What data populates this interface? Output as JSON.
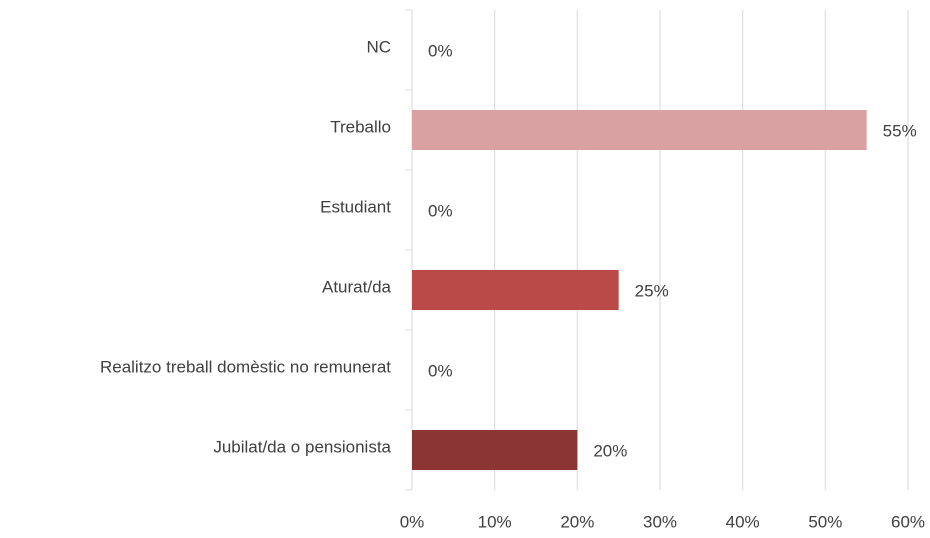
{
  "chart_data": {
    "type": "barh",
    "categories": [
      "NC",
      "Treballo",
      "Estudiant",
      "Aturat/da",
      "Realitzo treball domèstic no remunerat",
      "Jubilat/da o pensionista"
    ],
    "values": [
      0,
      55,
      0,
      25,
      0,
      20
    ],
    "value_labels": [
      "0%",
      "55%",
      "0%",
      "25%",
      "0%",
      "20%"
    ],
    "colors": [
      "#e6b8b7",
      "#d9a1a1",
      "#c96a68",
      "#b94a48",
      "#a33e3d",
      "#8b3535"
    ],
    "xlim": [
      0,
      60
    ],
    "xticks": [
      {
        "value": 0,
        "label": "0%"
      },
      {
        "value": 10,
        "label": "10%"
      },
      {
        "value": 20,
        "label": "20%"
      },
      {
        "value": 30,
        "label": "30%"
      },
      {
        "value": 40,
        "label": "40%"
      },
      {
        "value": 50,
        "label": "50%"
      },
      {
        "value": 60,
        "label": "60%"
      }
    ],
    "grid": true
  }
}
